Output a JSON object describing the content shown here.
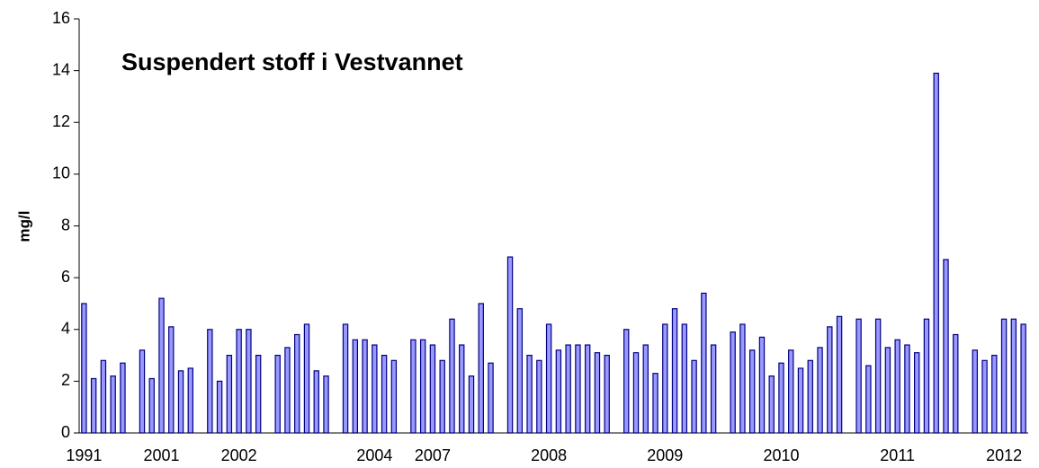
{
  "chart_data": {
    "type": "bar",
    "title": "Suspendert stoff i Vestvannet",
    "y_label": "mg/l",
    "categories": [
      "1991",
      null,
      null,
      null,
      null,
      null,
      null,
      null,
      "2001",
      null,
      null,
      null,
      null,
      null,
      null,
      null,
      "2002",
      null,
      null,
      null,
      null,
      null,
      null,
      null,
      null,
      null,
      null,
      null,
      null,
      null,
      "2004",
      null,
      null,
      null,
      null,
      null,
      "2007",
      null,
      null,
      null,
      null,
      null,
      null,
      null,
      null,
      null,
      null,
      null,
      "2008",
      null,
      null,
      null,
      null,
      null,
      null,
      null,
      null,
      null,
      null,
      null,
      "2009",
      null,
      null,
      null,
      null,
      null,
      null,
      null,
      null,
      null,
      null,
      null,
      "2010",
      null,
      null,
      null,
      null,
      null,
      null,
      null,
      null,
      null,
      null,
      null,
      "2011",
      null,
      null,
      null,
      null,
      null,
      null,
      null,
      null,
      null,
      null,
      "2012",
      null,
      null
    ],
    "values": [
      5.0,
      2.1,
      2.8,
      2.2,
      2.7,
      null,
      3.2,
      2.1,
      5.2,
      4.1,
      2.4,
      2.5,
      null,
      4.0,
      2.0,
      3.0,
      4.0,
      4.0,
      3.0,
      null,
      3.0,
      3.3,
      3.8,
      4.2,
      2.4,
      2.2,
      null,
      4.2,
      3.6,
      3.6,
      3.4,
      3.0,
      2.8,
      null,
      3.6,
      3.6,
      3.4,
      2.8,
      4.4,
      3.4,
      2.2,
      5.0,
      2.7,
      null,
      6.8,
      4.8,
      3.0,
      2.8,
      4.2,
      3.2,
      3.4,
      3.4,
      3.4,
      3.1,
      3.0,
      null,
      4.0,
      3.1,
      3.4,
      2.3,
      4.2,
      4.8,
      4.2,
      2.8,
      5.4,
      3.4,
      null,
      3.9,
      4.2,
      3.2,
      3.7,
      2.2,
      2.7,
      3.2,
      2.5,
      2.8,
      3.3,
      4.1,
      4.5,
      null,
      4.4,
      2.6,
      4.4,
      3.3,
      3.6,
      3.4,
      3.1,
      4.4,
      13.9,
      6.7,
      3.8,
      null,
      3.2,
      2.8,
      3.0,
      4.4,
      4.4,
      4.2
    ],
    "color": "#9999ff",
    "edge_color": "#000080",
    "ylim": [
      0,
      16
    ],
    "yticks": [
      0,
      2,
      4,
      6,
      8,
      10,
      12,
      14,
      16
    ],
    "grid": false
  }
}
